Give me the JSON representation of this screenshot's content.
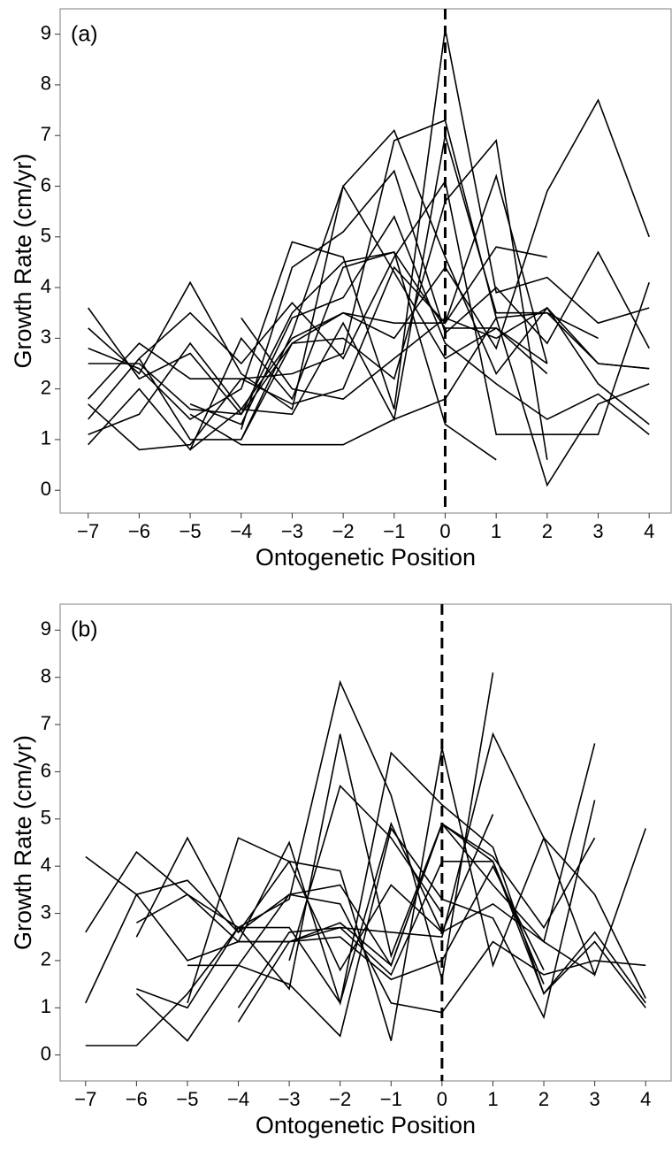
{
  "chart_data": [
    {
      "type": "line",
      "annotation": "(a)",
      "x_label": "Ontogenetic Position",
      "y_label": "Growth Rate (cm/yr)",
      "x": [
        -7,
        -6,
        -5,
        -4,
        -3,
        -2,
        -1,
        0,
        1,
        2,
        3,
        4
      ],
      "xlim": [
        -7.55,
        4.43
      ],
      "ylim": [
        -0.45,
        9.5
      ],
      "xticks": [
        {
          "value": -7,
          "label": "−7"
        },
        {
          "value": -6,
          "label": "−6"
        },
        {
          "value": -5,
          "label": "−5"
        },
        {
          "value": -4,
          "label": "−4"
        },
        {
          "value": -3,
          "label": "−3"
        },
        {
          "value": -2,
          "label": "−2"
        },
        {
          "value": -1,
          "label": "−1"
        },
        0,
        1,
        2,
        3,
        4
      ],
      "yticks": [
        0,
        1,
        2,
        3,
        4,
        5,
        6,
        7,
        8,
        9
      ],
      "line_color": "#000000",
      "vline": 0,
      "series": [
        {
          "values": [
            3.6,
            2.2,
            2.7,
            1.5,
            3.5,
            4.5,
            4.7,
            3.2,
            3.2,
            2.5,
            null,
            null
          ]
        },
        {
          "values": [
            3.2,
            2.3,
            4.1,
            2.3,
            1.6,
            6.0,
            7.1,
            4.6,
            2.3,
            3.6,
            2.5,
            2.4
          ]
        },
        {
          "values": [
            2.8,
            2.4,
            1.4,
            2.0,
            4.9,
            4.6,
            1.6,
            9.1,
            3.9,
            4.2,
            3.3,
            3.6
          ]
        },
        {
          "values": [
            2.5,
            2.5,
            1.6,
            1.5,
            2.9,
            3.5,
            3.3,
            3.3,
            4.8,
            4.6,
            null,
            null
          ]
        },
        {
          "values": [
            1.8,
            2.9,
            2.2,
            2.2,
            1.7,
            2.0,
            4.4,
            3.3,
            6.2,
            2.5,
            null,
            null
          ]
        },
        {
          "values": [
            1.4,
            2.6,
            3.5,
            2.5,
            3.7,
            2.6,
            4.6,
            6.1,
            1.1,
            1.1,
            1.1,
            4.1
          ]
        },
        {
          "values": [
            1.1,
            1.5,
            2.9,
            1.6,
            3.0,
            3.5,
            3.0,
            4.4,
            2.8,
            5.9,
            7.7,
            5.0
          ]
        },
        {
          "values": [
            0.9,
            2.0,
            0.8,
            3.0,
            1.8,
            4.4,
            4.7,
            1.3,
            0.6,
            null,
            null,
            null
          ]
        },
        {
          "values": [
            1.7,
            0.8,
            0.9,
            2.2,
            2.3,
            2.7,
            6.9,
            7.3,
            3.4,
            3.5,
            2.5,
            2.4
          ]
        },
        {
          "values": [
            null,
            2.6,
            1.0,
            1.0,
            2.9,
            3.0,
            2.2,
            5.7,
            6.9,
            0.6,
            null,
            null
          ]
        },
        {
          "values": [
            null,
            null,
            1.7,
            1.3,
            3.4,
            3.8,
            5.4,
            2.9,
            2.1,
            1.4,
            1.9,
            1.1
          ]
        },
        {
          "values": [
            null,
            null,
            1.5,
            0.9,
            0.9,
            0.9,
            1.4,
            1.8,
            3.4,
            0.1,
            1.7,
            2.1
          ]
        },
        {
          "values": [
            null,
            null,
            null,
            1.2,
            4.4,
            5.1,
            6.3,
            3.1,
            4.0,
            2.9,
            4.7,
            2.8
          ]
        },
        {
          "values": [
            null,
            null,
            null,
            3.4,
            2.0,
            1.8,
            2.6,
            3.4,
            3.0,
            3.6,
            2.1,
            1.3
          ]
        },
        {
          "values": [
            null,
            null,
            null,
            1.0,
            3.1,
            6.0,
            4.3,
            2.6,
            3.2,
            2.3,
            null,
            null
          ]
        },
        {
          "values": [
            null,
            null,
            0.8,
            1.6,
            1.5,
            3.3,
            1.4,
            7.0,
            3.5,
            3.5,
            3.0,
            null
          ]
        }
      ]
    },
    {
      "type": "line",
      "annotation": "(b)",
      "x_label": "Ontogenetic Position",
      "y_label": "Growth Rate (cm/yr)",
      "x": [
        -7,
        -6,
        -5,
        -4,
        -3,
        -2,
        -1,
        0,
        1,
        2,
        3,
        4
      ],
      "xlim": [
        -7.5,
        4.5
      ],
      "ylim": [
        -0.55,
        9.55
      ],
      "xticks": [
        {
          "value": -7,
          "label": "−7"
        },
        {
          "value": -6,
          "label": "−6"
        },
        {
          "value": -5,
          "label": "−5"
        },
        {
          "value": -4,
          "label": "−4"
        },
        {
          "value": -3,
          "label": "−3"
        },
        {
          "value": -2,
          "label": "−2"
        },
        {
          "value": -1,
          "label": "−1"
        },
        0,
        1,
        2,
        3,
        4
      ],
      "yticks": [
        0,
        1,
        2,
        3,
        4,
        5,
        6,
        7,
        8,
        9
      ],
      "line_color": "#000000",
      "vline": 0,
      "series": [
        {
          "values": [
            4.2,
            3.4,
            3.7,
            2.6,
            3.4,
            3.6,
            1.9,
            4.9,
            4.1,
            1.3,
            2.4,
            1.0
          ]
        },
        {
          "values": [
            2.6,
            4.3,
            3.4,
            2.4,
            4.5,
            1.1,
            6.4,
            5.3,
            4.4,
            1.3,
            2.6,
            1.1
          ]
        },
        {
          "values": [
            1.1,
            3.4,
            2.0,
            2.4,
            2.4,
            2.7,
            2.6,
            2.5,
            6.8,
            4.6,
            3.4,
            1.2
          ]
        },
        {
          "values": [
            0.2,
            0.2,
            1.3,
            2.7,
            3.3,
            7.9,
            5.5,
            1.6,
            8.1,
            null,
            null,
            null
          ]
        },
        {
          "values": [
            null,
            2.5,
            4.6,
            2.6,
            4.1,
            3.9,
            0.3,
            6.5,
            1.9,
            4.6,
            1.7,
            4.8
          ]
        },
        {
          "values": [
            null,
            2.8,
            3.4,
            2.7,
            2.7,
            1.1,
            4.9,
            2.6,
            5.1,
            null,
            null,
            null
          ]
        },
        {
          "values": [
            null,
            1.4,
            1.0,
            2.7,
            1.4,
            6.8,
            2.1,
            4.9,
            3.6,
            2.4,
            6.6,
            null
          ]
        },
        {
          "values": [
            null,
            1.3,
            0.3,
            1.9,
            3.4,
            3.2,
            1.1,
            0.9,
            2.4,
            1.7,
            2.0,
            1.9
          ]
        },
        {
          "values": [
            null,
            null,
            1.9,
            1.9,
            1.5,
            0.4,
            4.8,
            3.3,
            2.9,
            0.8,
            5.4,
            null
          ]
        },
        {
          "values": [
            null,
            null,
            1.1,
            4.6,
            4.1,
            1.8,
            3.6,
            2.6,
            3.2,
            2.4,
            1.7,
            null
          ]
        },
        {
          "values": [
            null,
            null,
            null,
            0.7,
            2.4,
            2.8,
            1.9,
            4.9,
            4.2,
            2.7,
            4.6,
            null
          ]
        },
        {
          "values": [
            null,
            null,
            null,
            1.0,
            2.6,
            2.7,
            1.7,
            4.1,
            4.1,
            1.5,
            null,
            null
          ]
        },
        {
          "values": [
            null,
            null,
            null,
            null,
            2.0,
            5.7,
            4.6,
            3.0,
            null,
            null,
            null,
            null
          ]
        },
        {
          "values": [
            null,
            null,
            null,
            2.4,
            2.4,
            2.5,
            1.6,
            2.0,
            4.0,
            1.8,
            null,
            null
          ]
        }
      ]
    }
  ]
}
